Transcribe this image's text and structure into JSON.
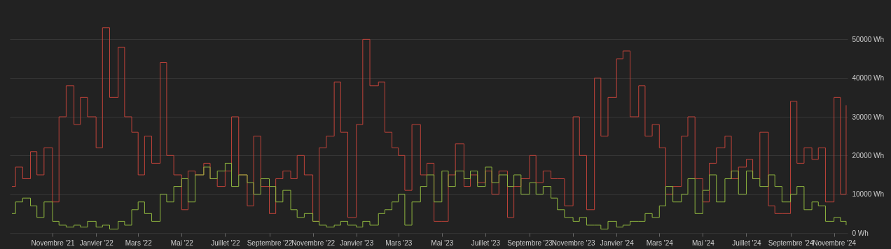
{
  "chart_data": {
    "type": "step",
    "x": [
      "2021-09-05",
      "2021-09-10",
      "2021-09-20",
      "2021-10-01",
      "2021-10-10",
      "2021-10-20",
      "2021-11-01",
      "2021-11-10",
      "2021-11-20",
      "2021-12-01",
      "2021-12-10",
      "2021-12-20",
      "2022-01-01",
      "2022-01-10",
      "2022-01-20",
      "2022-02-01",
      "2022-02-10",
      "2022-02-20",
      "2022-03-01",
      "2022-03-10",
      "2022-03-20",
      "2022-04-01",
      "2022-04-10",
      "2022-04-20",
      "2022-05-01",
      "2022-05-10",
      "2022-05-20",
      "2022-06-01",
      "2022-06-10",
      "2022-06-20",
      "2022-07-01",
      "2022-07-10",
      "2022-07-20",
      "2022-08-01",
      "2022-08-10",
      "2022-08-20",
      "2022-09-01",
      "2022-09-10",
      "2022-09-20",
      "2022-10-01",
      "2022-10-10",
      "2022-10-20",
      "2022-11-01",
      "2022-11-10",
      "2022-11-20",
      "2022-12-01",
      "2022-12-10",
      "2022-12-20",
      "2023-01-01",
      "2023-01-10",
      "2023-01-20",
      "2023-02-01",
      "2023-02-10",
      "2023-02-20",
      "2023-03-01",
      "2023-03-10",
      "2023-03-20",
      "2023-04-01",
      "2023-04-10",
      "2023-04-20",
      "2023-05-01",
      "2023-05-10",
      "2023-05-20",
      "2023-06-01",
      "2023-06-10",
      "2023-06-20",
      "2023-07-01",
      "2023-07-10",
      "2023-07-20",
      "2023-08-01",
      "2023-08-10",
      "2023-08-20",
      "2023-09-01",
      "2023-09-10",
      "2023-09-20",
      "2023-10-01",
      "2023-10-10",
      "2023-10-20",
      "2023-11-01",
      "2023-11-10",
      "2023-11-20",
      "2023-12-01",
      "2023-12-10",
      "2023-12-20",
      "2024-01-01",
      "2024-01-10",
      "2024-01-20",
      "2024-02-01",
      "2024-02-10",
      "2024-02-20",
      "2024-03-01",
      "2024-03-10",
      "2024-03-20",
      "2024-04-01",
      "2024-04-10",
      "2024-04-20",
      "2024-05-01",
      "2024-05-10",
      "2024-05-20",
      "2024-06-01",
      "2024-06-10",
      "2024-06-20",
      "2024-07-01",
      "2024-07-10",
      "2024-07-20",
      "2024-08-01",
      "2024-08-10",
      "2024-08-20",
      "2024-09-01",
      "2024-09-10",
      "2024-09-20",
      "2024-10-01",
      "2024-10-10",
      "2024-10-20",
      "2024-11-01",
      "2024-11-10",
      "2024-11-18"
    ],
    "series": [
      {
        "color": "#c0433a",
        "values": [
          12000,
          17000,
          14000,
          21000,
          15000,
          22000,
          8000,
          30000,
          38000,
          28000,
          35000,
          30000,
          22000,
          53000,
          35000,
          48000,
          30000,
          26000,
          15000,
          25000,
          18000,
          44000,
          20000,
          15000,
          6000,
          16000,
          15000,
          18000,
          14000,
          12000,
          16000,
          30000,
          15000,
          7000,
          25000,
          12000,
          5000,
          14000,
          16000,
          14000,
          20000,
          15000,
          3000,
          22000,
          25000,
          39000,
          26000,
          4000,
          28000,
          50000,
          38000,
          39000,
          26000,
          22000,
          20000,
          11000,
          28000,
          15000,
          18000,
          3000,
          3000,
          15000,
          23000,
          12000,
          15000,
          13000,
          16000,
          10000,
          16000,
          4000,
          12000,
          14000,
          20000,
          13000,
          16000,
          14000,
          14000,
          7000,
          30000,
          20000,
          6000,
          40000,
          25000,
          35000,
          45000,
          47000,
          30000,
          38000,
          25000,
          28000,
          22000,
          10000,
          12000,
          25000,
          30000,
          14000,
          8000,
          18000,
          22000,
          25000,
          14000,
          17000,
          19000,
          14000,
          26000,
          7000,
          5000,
          5000,
          34000,
          18000,
          22000,
          19000,
          22000,
          8000,
          35000,
          10000,
          33000
        ]
      },
      {
        "color": "#8fb63f",
        "values": [
          5000,
          8000,
          9000,
          7000,
          4000,
          8000,
          3000,
          2000,
          1500,
          2000,
          1500,
          3000,
          1500,
          2000,
          1000,
          3000,
          2000,
          6000,
          8000,
          5000,
          3000,
          10000,
          8000,
          12000,
          14000,
          8000,
          15000,
          17000,
          14000,
          16000,
          18000,
          12000,
          15000,
          13000,
          10000,
          14000,
          12000,
          8000,
          11000,
          6000,
          4000,
          5000,
          3000,
          2000,
          1500,
          2000,
          3000,
          2000,
          1500,
          3000,
          2000,
          5000,
          6000,
          8000,
          10000,
          2000,
          8000,
          12000,
          15000,
          8000,
          16000,
          12000,
          16000,
          14000,
          16000,
          12000,
          17000,
          13000,
          15000,
          12000,
          15000,
          10000,
          13000,
          10000,
          12000,
          9000,
          6000,
          4000,
          3000,
          4000,
          2000,
          2000,
          1000,
          3000,
          1500,
          2000,
          3000,
          3000,
          5000,
          4000,
          7000,
          12000,
          8000,
          10000,
          14000,
          5000,
          11000,
          15000,
          8000,
          14000,
          16000,
          10000,
          16000,
          14000,
          12000,
          15000,
          12000,
          8000,
          10000,
          12000,
          6000,
          8000,
          7000,
          3000,
          4000,
          3000,
          2000
        ]
      }
    ],
    "xlim": [
      "2021-09-02",
      "2024-11-20"
    ],
    "xticks": [
      {
        "value": "2021-11-01",
        "label": "Novembre '21"
      },
      {
        "value": "2022-01-01",
        "label": "Janvier '22"
      },
      {
        "value": "2022-03-01",
        "label": "Mars '22"
      },
      {
        "value": "2022-05-01",
        "label": "Mai '22"
      },
      {
        "value": "2022-07-01",
        "label": "Juillet '22"
      },
      {
        "value": "2022-09-01",
        "label": "Septembre '22"
      },
      {
        "value": "2022-11-01",
        "label": "Novembre '22"
      },
      {
        "value": "2023-01-01",
        "label": "Janvier '23"
      },
      {
        "value": "2023-03-01",
        "label": "Mars '23"
      },
      {
        "value": "2023-05-01",
        "label": "Mai '23"
      },
      {
        "value": "2023-07-01",
        "label": "Juillet '23"
      },
      {
        "value": "2023-09-01",
        "label": "Septembre '23"
      },
      {
        "value": "2023-11-01",
        "label": "Novembre '23"
      },
      {
        "value": "2024-01-01",
        "label": "Janvier '24"
      },
      {
        "value": "2024-03-01",
        "label": "Mars '24"
      },
      {
        "value": "2024-05-01",
        "label": "Mai '24"
      },
      {
        "value": "2024-07-01",
        "label": "Juillet '24"
      },
      {
        "value": "2024-09-01",
        "label": "Septembre '24"
      },
      {
        "value": "2024-11-01",
        "label": "Novembre '24"
      }
    ],
    "ylim": [
      0,
      60000
    ],
    "yticks": [
      {
        "value": 0,
        "label": "0 Wh"
      },
      {
        "value": 10000,
        "label": "10000 Wh"
      },
      {
        "value": 20000,
        "label": "20000 Wh"
      },
      {
        "value": 30000,
        "label": "30000 Wh"
      },
      {
        "value": 40000,
        "label": "40000 Wh"
      },
      {
        "value": 50000,
        "label": "50000 Wh"
      }
    ],
    "grid": "y"
  }
}
